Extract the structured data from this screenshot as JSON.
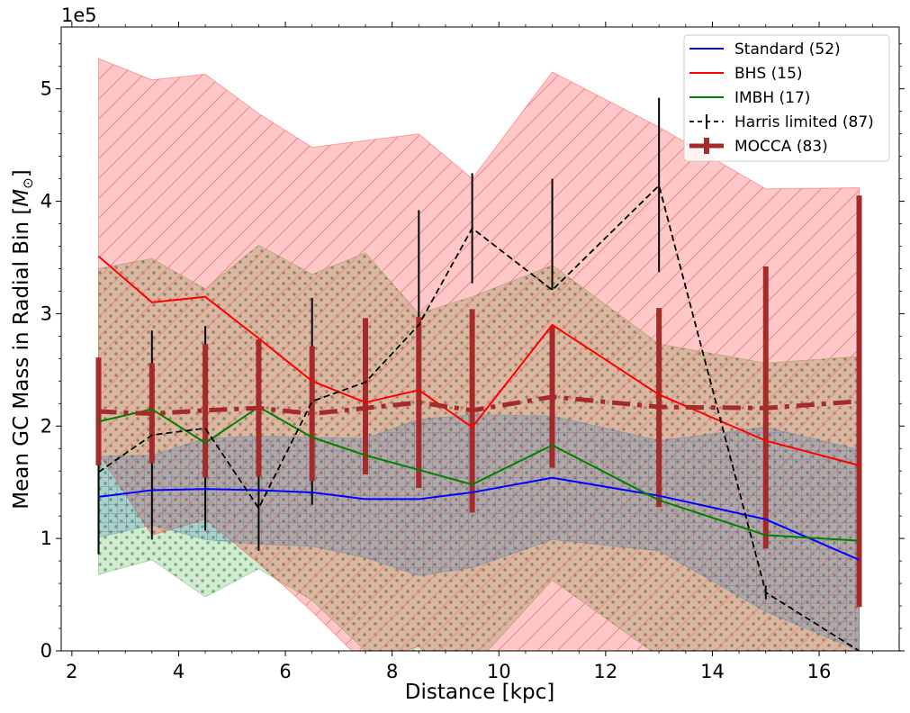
{
  "chart_data": {
    "type": "line",
    "xlabel": "Distance [kpc]",
    "ylabel": "Mean GC Mass in Radial Bin [",
    "ylabel_math": "M",
    "ylabel_sub": "⊙",
    "ylabel_end": "]",
    "y_offset_label": "1e5",
    "xlim": [
      1.8,
      17.5
    ],
    "ylim": [
      0,
      5.55
    ],
    "x_ticks": [
      2,
      4,
      6,
      8,
      10,
      12,
      14,
      16
    ],
    "y_ticks": [
      0,
      1,
      2,
      3,
      4,
      5
    ],
    "x": [
      2.5,
      3.5,
      4.5,
      5.5,
      6.5,
      7.5,
      8.5,
      9.5,
      11.0,
      13.0,
      15.0,
      16.75
    ],
    "series": [
      {
        "name": "Standard (52)",
        "color": "#0000ff",
        "style": "solid",
        "values": [
          1.37,
          1.43,
          1.44,
          1.43,
          1.41,
          1.35,
          1.35,
          1.41,
          1.54,
          1.38,
          1.17,
          0.81
        ],
        "band_lower": [
          1.01,
          1.12,
          0.99,
          0.95,
          0.93,
          0.83,
          0.67,
          0.74,
          0.99,
          0.89,
          0.35,
          0.0
        ],
        "band_upper": [
          1.73,
          1.74,
          1.89,
          1.91,
          1.9,
          1.89,
          2.06,
          2.1,
          2.09,
          1.87,
          1.99,
          1.79
        ],
        "band_color": "#1f77b4",
        "hatch": "grid"
      },
      {
        "name": "BHS (15)",
        "color": "#ff0000",
        "style": "solid",
        "values": [
          3.51,
          3.1,
          3.15,
          2.78,
          2.4,
          2.21,
          2.32,
          1.99,
          2.9,
          2.28,
          1.87,
          1.65
        ],
        "band_lower": [
          1.76,
          1.03,
          1.17,
          0.78,
          0.35,
          -0.12,
          0.04,
          -0.44,
          -0.22,
          -0.11,
          -0.36,
          -0.8
        ],
        "band_upper": [
          5.27,
          5.08,
          5.13,
          4.78,
          4.48,
          4.54,
          4.6,
          4.2,
          5.15,
          4.66,
          4.11,
          4.12
        ],
        "band_color": "#ff0000",
        "hatch": "diag"
      },
      {
        "name": "IMBH (17)",
        "color": "#008000",
        "style": "solid",
        "values": [
          2.04,
          2.15,
          1.85,
          2.17,
          1.9,
          1.74,
          1.61,
          1.48,
          1.83,
          1.34,
          1.03,
          0.98
        ],
        "band_lower": [
          0.68,
          0.81,
          0.48,
          0.73,
          0.45,
          0.0,
          -0.1,
          -0.15,
          0.63,
          -0.05,
          -0.5,
          -0.5
        ],
        "band_upper": [
          3.4,
          3.49,
          3.22,
          3.61,
          3.35,
          3.54,
          3.0,
          3.15,
          3.43,
          2.73,
          2.56,
          2.62
        ],
        "band_color": "#2ca02c",
        "hatch": "dots"
      },
      {
        "name": "Harris limited (87)",
        "color": "#000000",
        "style": "dashed",
        "values": [
          1.59,
          1.92,
          1.98,
          1.27,
          2.22,
          2.39,
          2.9,
          3.76,
          3.21,
          4.14,
          0.52,
          0.0
        ],
        "err_lower": [
          0.86,
          0.99,
          1.07,
          0.89,
          1.3,
          null,
          null,
          3.27,
          null,
          3.37,
          0.46,
          null
        ],
        "err_upper": [
          2.3,
          2.85,
          2.89,
          1.65,
          3.14,
          null,
          3.92,
          4.25,
          4.2,
          4.92,
          0.58,
          null
        ]
      },
      {
        "name": "MOCCA (83)",
        "color": "#a52a2a",
        "style": "dashdot",
        "values": [
          2.13,
          2.11,
          2.14,
          2.16,
          2.11,
          2.16,
          2.21,
          2.14,
          2.26,
          2.17,
          2.16,
          2.22
        ],
        "err_lower": [
          1.65,
          1.67,
          1.54,
          1.55,
          1.51,
          1.57,
          1.45,
          1.23,
          1.63,
          1.28,
          0.91,
          0.39
        ],
        "err_upper": [
          2.61,
          2.56,
          2.73,
          2.77,
          2.71,
          2.96,
          2.97,
          3.04,
          2.89,
          3.05,
          3.42,
          4.05
        ]
      }
    ],
    "legend_position": "top-right"
  }
}
